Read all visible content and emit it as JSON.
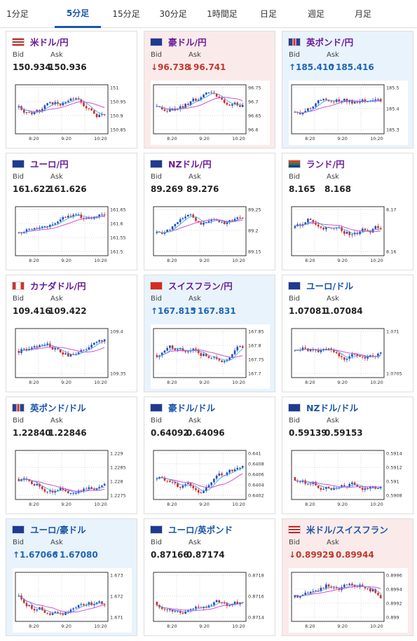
{
  "tabs": [
    {
      "label": "1分足",
      "active": false
    },
    {
      "label": "5分足",
      "active": true
    },
    {
      "label": "15分足",
      "active": false
    },
    {
      "label": "30分足",
      "active": false
    },
    {
      "label": "1時間足",
      "active": false
    },
    {
      "label": "日足",
      "active": false
    },
    {
      "label": "週足",
      "active": false
    },
    {
      "label": "月足",
      "active": false
    }
  ],
  "labels": {
    "bid": "Bid",
    "ask": "Ask"
  },
  "colors": {
    "pair_jpy": "#6a1b9a",
    "pair_cross": "#1a56a8",
    "up": "#1f64b8",
    "down": "#c0392b",
    "candle_up": "#1f4fc4",
    "candle_down": "#d42a2a",
    "ma_long": "#d24fd4",
    "ma_short": "#2fa0e0"
  },
  "cards": [
    {
      "pair": "米ドル/円",
      "flag": "us",
      "trend": "none",
      "bid": "150.934",
      "ask": "150.936",
      "chart_data": {
        "type": "candlestick",
        "x_ticks": [
          "8:20",
          "9:20",
          "10:20"
        ],
        "y_ticks": [
          "151",
          "150.95",
          "150.9",
          "150.85"
        ]
      }
    },
    {
      "pair": "豪ドル/円",
      "flag": "au",
      "trend": "down",
      "bid": "↓96.738",
      "ask": "↓96.741",
      "chart_data": {
        "type": "candlestick",
        "x_ticks": [
          "8:20",
          "9:20",
          "10:20"
        ],
        "y_ticks": [
          "96.75",
          "96.7",
          "96.65",
          "96.6"
        ]
      }
    },
    {
      "pair": "英ポンド/円",
      "flag": "gb",
      "trend": "up",
      "bid": "↑185.410",
      "ask": "↑185.416",
      "chart_data": {
        "type": "candlestick",
        "x_ticks": [
          "8:20",
          "9:20",
          "10:20"
        ],
        "y_ticks": [
          "185.5",
          "185.4",
          "185.3"
        ]
      }
    },
    {
      "pair": "ユーロ/円",
      "flag": "eu",
      "trend": "none",
      "bid": "161.622",
      "ask": "161.626",
      "chart_data": {
        "type": "candlestick",
        "x_ticks": [
          "8:20",
          "9:20",
          "10:20"
        ],
        "y_ticks": [
          "161.65",
          "161.6",
          "161.55",
          "161.5"
        ]
      }
    },
    {
      "pair": "NZドル/円",
      "flag": "nz",
      "trend": "none",
      "bid": "89.269",
      "ask": "89.276",
      "chart_data": {
        "type": "candlestick",
        "x_ticks": [
          "8:20",
          "9:20",
          "10:20"
        ],
        "y_ticks": [
          "89.25",
          "89.2",
          "89.15"
        ]
      }
    },
    {
      "pair": "ランド/円",
      "flag": "za",
      "trend": "none",
      "bid": "8.165",
      "ask": "8.168",
      "chart_data": {
        "type": "candlestick",
        "x_ticks": [
          "8:20",
          "9:20",
          "10:20"
        ],
        "y_ticks": [
          "8.17",
          "8.16"
        ]
      }
    },
    {
      "pair": "カナダドル/円",
      "flag": "ca",
      "trend": "none",
      "bid": "109.416",
      "ask": "109.422",
      "chart_data": {
        "type": "candlestick",
        "x_ticks": [
          "8:20",
          "9:20",
          "10:20"
        ],
        "y_ticks": [
          "109.4",
          "109.35"
        ]
      }
    },
    {
      "pair": "スイスフラン/円",
      "flag": "ch",
      "trend": "up",
      "bid": "↑167.815",
      "ask": "↑167.831",
      "chart_data": {
        "type": "candlestick",
        "x_ticks": [
          "8:20",
          "9:20",
          "10:20"
        ],
        "y_ticks": [
          "167.85",
          "167.8",
          "167.75",
          "167.7"
        ]
      }
    },
    {
      "pair": "ユーロ/ドル",
      "flag": "eu",
      "trend": "none",
      "bid": "1.07081",
      "ask": "1.07084",
      "chart_data": {
        "type": "candlestick",
        "x_ticks": [
          "8:20",
          "9:20",
          "10:20"
        ],
        "y_ticks": [
          "1.071",
          "1.0705"
        ]
      }
    },
    {
      "pair": "英ポンド/ドル",
      "flag": "gb",
      "trend": "none",
      "bid": "1.22840",
      "ask": "1.22846",
      "chart_data": {
        "type": "candlestick",
        "x_ticks": [
          "8:20",
          "9:20",
          "10:20"
        ],
        "y_ticks": [
          "1.229",
          "1.2285",
          "1.228",
          "1.2275"
        ]
      }
    },
    {
      "pair": "豪ドル/ドル",
      "flag": "au",
      "trend": "none",
      "bid": "0.64092",
      "ask": "0.64096",
      "chart_data": {
        "type": "candlestick",
        "x_ticks": [
          "8:20",
          "9:20",
          "10:20"
        ],
        "y_ticks": [
          "0.641",
          "0.6408",
          "0.6406",
          "0.6404",
          "0.6402"
        ]
      }
    },
    {
      "pair": "NZドル/ドル",
      "flag": "nz",
      "trend": "none",
      "bid": "0.59139",
      "ask": "0.59153",
      "chart_data": {
        "type": "candlestick",
        "x_ticks": [
          "8:20",
          "9:20",
          "10:20"
        ],
        "y_ticks": [
          "0.5914",
          "0.5912",
          "0.591",
          "0.5908"
        ]
      }
    },
    {
      "pair": "ユーロ/豪ドル",
      "flag": "eu",
      "trend": "up",
      "bid": "↑1.67066",
      "ask": "↑1.67080",
      "chart_data": {
        "type": "candlestick",
        "x_ticks": [
          "8:20",
          "9:20",
          "10:20"
        ],
        "y_ticks": [
          "1.673",
          "1.672",
          "1.671"
        ]
      }
    },
    {
      "pair": "ユーロ/英ポンド",
      "flag": "eu",
      "trend": "none",
      "bid": "0.87166",
      "ask": "0.87174",
      "chart_data": {
        "type": "candlestick",
        "x_ticks": [
          "8:20",
          "9:20",
          "10:20"
        ],
        "y_ticks": [
          "0.8718",
          "0.8716",
          "0.8714"
        ]
      }
    },
    {
      "pair": "米ドル/スイスフラン",
      "flag": "us",
      "trend": "down",
      "bid": "↓0.89929",
      "ask": "↓0.89944",
      "chart_data": {
        "type": "candlestick",
        "x_ticks": [
          "8:20",
          "9:20",
          "10:20"
        ],
        "y_ticks": [
          "0.8996",
          "0.8994",
          "0.8992",
          "0.899"
        ]
      }
    }
  ]
}
